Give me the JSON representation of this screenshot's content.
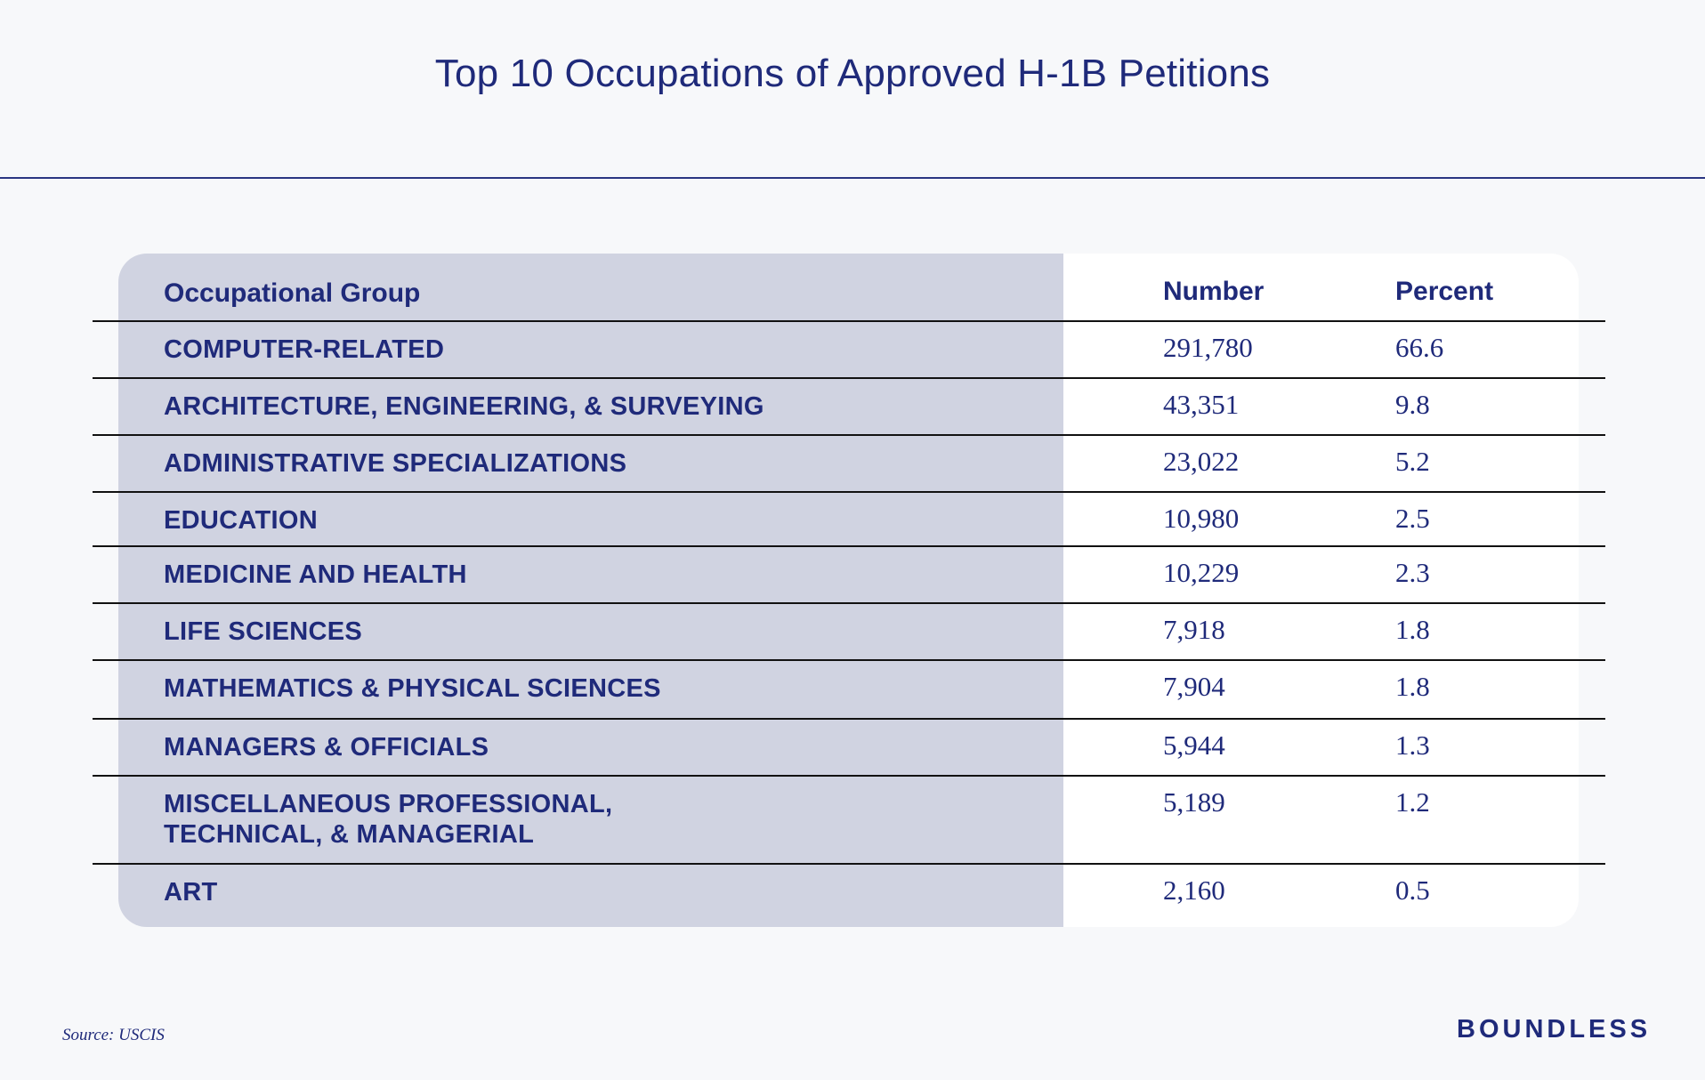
{
  "title": "Top 10 Occupations of Approved H-1B Petitions",
  "source": "Source: USCIS",
  "brand": "BOUNDLESS",
  "colors": {
    "text": "#1f2a7a",
    "label_column_bg": "#d0d3e1",
    "card_bg": "#ffffff",
    "page_bg": "#f7f8fa"
  },
  "chart_data": {
    "type": "table",
    "title": "Top 10 Occupations of Approved H-1B Petitions",
    "columns": [
      "Occupational Group",
      "Number",
      "Percent"
    ],
    "rows": [
      {
        "group": "COMPUTER-RELATED",
        "number": "291,780",
        "percent": "66.6"
      },
      {
        "group": "ARCHITECTURE, ENGINEERING, & SURVEYING",
        "number": "43,351",
        "percent": "9.8"
      },
      {
        "group": "ADMINISTRATIVE SPECIALIZATIONS",
        "number": "23,022",
        "percent": "5.2"
      },
      {
        "group": "EDUCATION",
        "number": "10,980",
        "percent": "2.5"
      },
      {
        "group": "MEDICINE AND HEALTH",
        "number": "10,229",
        "percent": "2.3"
      },
      {
        "group": "LIFE SCIENCES",
        "number": "7,918",
        "percent": "1.8"
      },
      {
        "group": "MATHEMATICS & PHYSICAL SCIENCES",
        "number": "7,904",
        "percent": "1.8"
      },
      {
        "group": "MANAGERS & OFFICIALS",
        "number": "5,944",
        "percent": "1.3"
      },
      {
        "group": "MISCELLANEOUS PROFESSIONAL, TECHNICAL, & MANAGERIAL",
        "number": "5,189",
        "percent": "1.2"
      },
      {
        "group": "ART",
        "number": "2,160",
        "percent": "0.5"
      }
    ]
  }
}
